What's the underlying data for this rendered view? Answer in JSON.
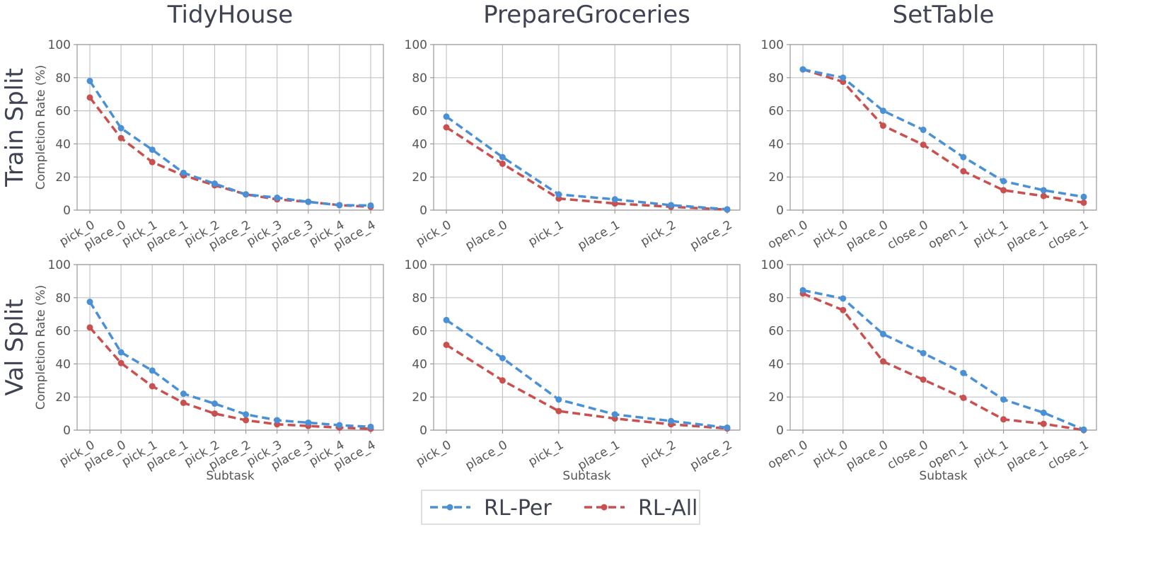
{
  "colors": {
    "RL-Per": "#4a90d6",
    "RL-All": "#c9504f"
  },
  "legend": {
    "items": [
      "RL-Per",
      "RL-All"
    ]
  },
  "chart_data": [
    {
      "type": "line",
      "title": "TidyHouse",
      "row_label": "Train Split",
      "xlabel": "",
      "ylabel": "Completion Rate (%)",
      "ylim": [
        0,
        100
      ],
      "yticks": [
        "0",
        "20",
        "40",
        "60",
        "80",
        "100"
      ],
      "categories": [
        "pick_0",
        "place_0",
        "pick_1",
        "place_1",
        "pick_2",
        "place_2",
        "pick_3",
        "place_3",
        "pick_4",
        "place_4"
      ],
      "series": [
        {
          "name": "RL-Per",
          "values": [
            78,
            49.5,
            36.5,
            22.5,
            16,
            9.5,
            7.5,
            5,
            3,
            2.8
          ]
        },
        {
          "name": "RL-All",
          "values": [
            68,
            43.5,
            29,
            21,
            15,
            9.5,
            6.5,
            5,
            3,
            2
          ]
        }
      ]
    },
    {
      "type": "line",
      "title": "PrepareGroceries",
      "row_label": "",
      "xlabel": "",
      "ylabel": "",
      "ylim": [
        0,
        100
      ],
      "yticks": [
        "0",
        "20",
        "40",
        "60",
        "80",
        "100"
      ],
      "categories": [
        "pick_0",
        "place_0",
        "pick_1",
        "place_1",
        "pick_2",
        "place_2"
      ],
      "series": [
        {
          "name": "RL-Per",
          "values": [
            56.5,
            32,
            9.5,
            6.5,
            3,
            0.5
          ]
        },
        {
          "name": "RL-All",
          "values": [
            50,
            28,
            7,
            4,
            2,
            0.3
          ]
        }
      ]
    },
    {
      "type": "line",
      "title": "SetTable",
      "row_label": "",
      "xlabel": "",
      "ylabel": "",
      "ylim": [
        0,
        100
      ],
      "yticks": [
        "0",
        "20",
        "40",
        "60",
        "80",
        "100"
      ],
      "categories": [
        "open_0",
        "pick_0",
        "place_0",
        "close_0",
        "open_1",
        "pick_1",
        "place_1",
        "close_1"
      ],
      "series": [
        {
          "name": "RL-Per",
          "values": [
            85,
            80,
            60,
            48.5,
            32,
            17.5,
            12,
            8
          ]
        },
        {
          "name": "RL-All",
          "values": [
            85,
            77.5,
            51,
            39.5,
            23.5,
            12,
            8.5,
            4.5
          ]
        }
      ]
    },
    {
      "type": "line",
      "title": "",
      "row_label": "Val Split",
      "xlabel": "Subtask",
      "ylabel": "Completion Rate (%)",
      "ylim": [
        0,
        100
      ],
      "yticks": [
        "0",
        "20",
        "40",
        "60",
        "80",
        "100"
      ],
      "categories": [
        "pick_0",
        "place_0",
        "pick_1",
        "place_1",
        "pick_2",
        "place_2",
        "pick_3",
        "place_3",
        "pick_4",
        "place_4"
      ],
      "series": [
        {
          "name": "RL-Per",
          "values": [
            77.5,
            47,
            36,
            22,
            16,
            9.5,
            6,
            4.5,
            3,
            2
          ]
        },
        {
          "name": "RL-All",
          "values": [
            62,
            40.5,
            26.5,
            16.5,
            10,
            6,
            3.5,
            2.5,
            1.5,
            0.8
          ]
        }
      ]
    },
    {
      "type": "line",
      "title": "",
      "row_label": "",
      "xlabel": "Subtask",
      "ylabel": "",
      "ylim": [
        0,
        100
      ],
      "yticks": [
        "0",
        "20",
        "40",
        "60",
        "80",
        "100"
      ],
      "categories": [
        "pick_0",
        "place_0",
        "pick_1",
        "place_1",
        "pick_2",
        "place_2"
      ],
      "series": [
        {
          "name": "RL-Per",
          "values": [
            66.5,
            43.5,
            18.5,
            9.5,
            5.5,
            1.5
          ]
        },
        {
          "name": "RL-All",
          "values": [
            51.5,
            30,
            11.5,
            7,
            3.5,
            1
          ]
        }
      ]
    },
    {
      "type": "line",
      "title": "",
      "row_label": "",
      "xlabel": "Subtask",
      "ylabel": "",
      "ylim": [
        0,
        100
      ],
      "yticks": [
        "0",
        "20",
        "40",
        "60",
        "80",
        "100"
      ],
      "categories": [
        "open_0",
        "pick_0",
        "place_0",
        "close_0",
        "open_1",
        "pick_1",
        "place_1",
        "close_1"
      ],
      "series": [
        {
          "name": "RL-Per",
          "values": [
            84.5,
            79.5,
            58,
            46.5,
            34.5,
            18.5,
            10.5,
            0.3
          ]
        },
        {
          "name": "RL-All",
          "values": [
            82.5,
            72.5,
            41.5,
            30.5,
            19.5,
            6.5,
            3.8,
            0
          ]
        }
      ]
    }
  ]
}
